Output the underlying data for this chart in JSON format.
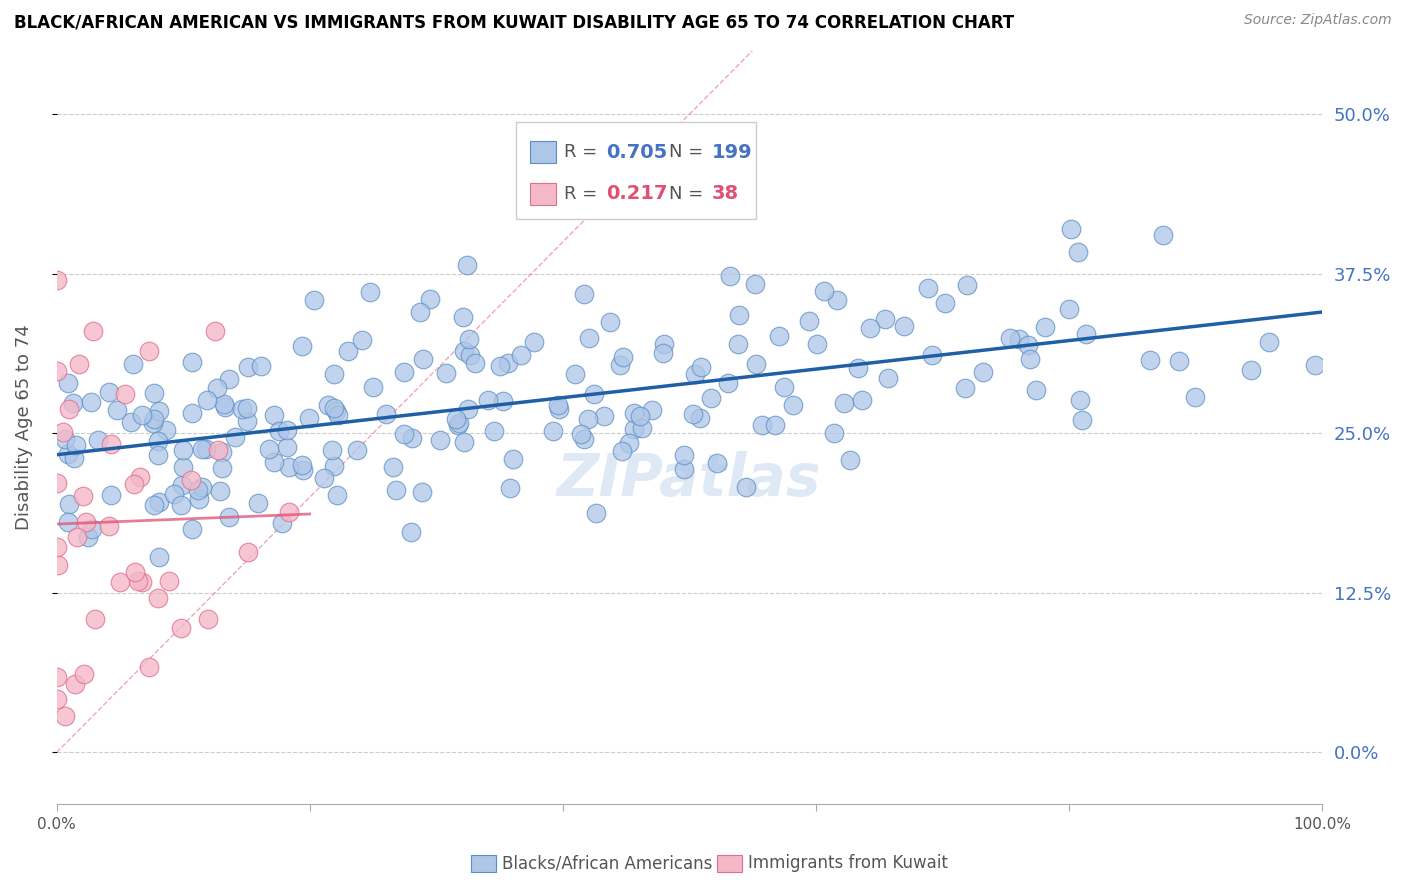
{
  "title": "BLACK/AFRICAN AMERICAN VS IMMIGRANTS FROM KUWAIT DISABILITY AGE 65 TO 74 CORRELATION CHART",
  "source": "Source: ZipAtlas.com",
  "ylabel": "Disability Age 65 to 74",
  "xlim": [
    0.0,
    1.0
  ],
  "ylim": [
    -0.04,
    0.55
  ],
  "yticks": [
    0.0,
    0.125,
    0.25,
    0.375,
    0.5
  ],
  "ytick_labels": [
    "0.0%",
    "12.5%",
    "25.0%",
    "37.5%",
    "50.0%"
  ],
  "blue_R": 0.705,
  "blue_N": 199,
  "pink_R": 0.217,
  "pink_N": 38,
  "blue_color": "#aec6e8",
  "blue_edge_color": "#5b8ec4",
  "blue_line_color": "#1f5fa6",
  "pink_color": "#f4b8c8",
  "pink_edge_color": "#e07090",
  "pink_line_color": "#e05075",
  "diag_line_color": "#e8aabb",
  "watermark": "ZIPatlas",
  "legend_blue_label": "Blacks/African Americans",
  "legend_pink_label": "Immigrants from Kuwait",
  "background_color": "#ffffff",
  "grid_color": "#cccccc",
  "title_color": "#000000",
  "right_tick_color": "#4472c4",
  "seed": 7
}
